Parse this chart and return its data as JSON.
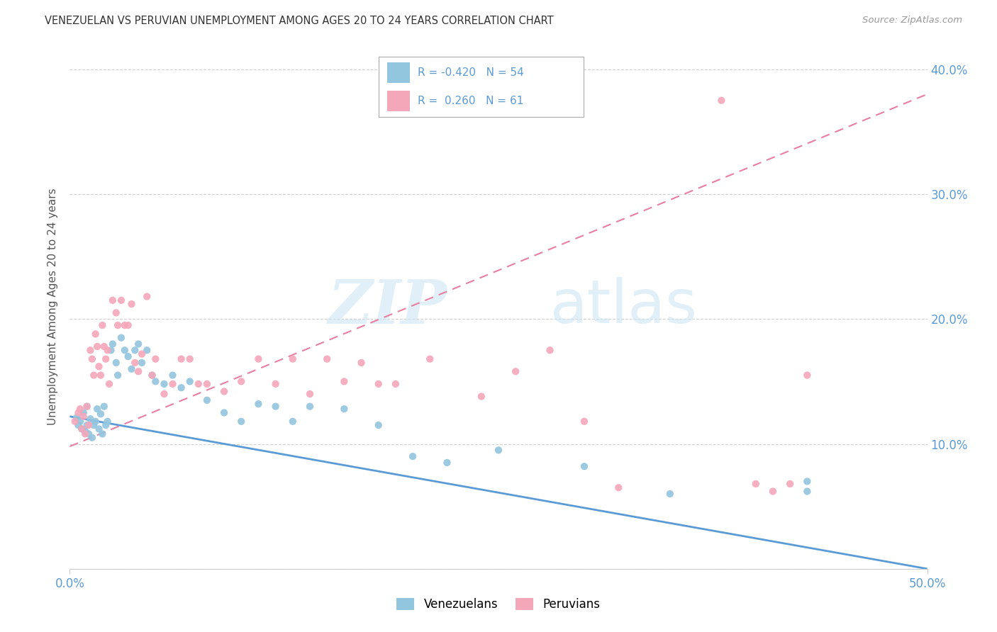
{
  "title": "VENEZUELAN VS PERUVIAN UNEMPLOYMENT AMONG AGES 20 TO 24 YEARS CORRELATION CHART",
  "source": "Source: ZipAtlas.com",
  "ylabel": "Unemployment Among Ages 20 to 24 years",
  "xlim": [
    0.0,
    0.5
  ],
  "ylim": [
    0.0,
    0.42
  ],
  "xtick_positions": [
    0.0,
    0.5
  ],
  "xtick_labels": [
    "0.0%",
    "50.0%"
  ],
  "ytick_positions": [
    0.0,
    0.1,
    0.2,
    0.3,
    0.4
  ],
  "ytick_labels_right": [
    "",
    "10.0%",
    "20.0%",
    "30.0%",
    "40.0%"
  ],
  "venezuelan_color": "#92c5de",
  "peruvian_color": "#f4a7b9",
  "venezuelan_line_color": "#5b9bd5",
  "peruvian_line_color": "#e87fa0",
  "R_venezuelan": -0.42,
  "N_venezuelan": 54,
  "R_peruvian": 0.26,
  "N_peruvian": 61,
  "ven_line_x0": 0.0,
  "ven_line_y0": 0.122,
  "ven_line_x1": 0.5,
  "ven_line_y1": 0.0,
  "per_line_x0": 0.0,
  "per_line_y0": 0.098,
  "per_line_x1": 0.5,
  "per_line_y1": 0.38,
  "venezuelan_scatter_x": [
    0.004,
    0.005,
    0.006,
    0.007,
    0.008,
    0.009,
    0.01,
    0.01,
    0.011,
    0.012,
    0.013,
    0.014,
    0.015,
    0.016,
    0.017,
    0.018,
    0.019,
    0.02,
    0.021,
    0.022,
    0.024,
    0.025,
    0.027,
    0.028,
    0.03,
    0.032,
    0.034,
    0.036,
    0.038,
    0.04,
    0.042,
    0.045,
    0.048,
    0.05,
    0.055,
    0.06,
    0.065,
    0.07,
    0.08,
    0.09,
    0.1,
    0.11,
    0.12,
    0.13,
    0.14,
    0.16,
    0.18,
    0.2,
    0.22,
    0.25,
    0.3,
    0.35,
    0.43,
    0.43
  ],
  "venezuelan_scatter_y": [
    0.121,
    0.115,
    0.118,
    0.112,
    0.125,
    0.11,
    0.115,
    0.13,
    0.108,
    0.12,
    0.105,
    0.115,
    0.118,
    0.128,
    0.112,
    0.124,
    0.108,
    0.13,
    0.115,
    0.118,
    0.175,
    0.18,
    0.165,
    0.155,
    0.185,
    0.175,
    0.17,
    0.16,
    0.175,
    0.18,
    0.165,
    0.175,
    0.155,
    0.15,
    0.148,
    0.155,
    0.145,
    0.15,
    0.135,
    0.125,
    0.118,
    0.132,
    0.13,
    0.118,
    0.13,
    0.128,
    0.115,
    0.09,
    0.085,
    0.095,
    0.082,
    0.06,
    0.07,
    0.062
  ],
  "peruvian_scatter_x": [
    0.003,
    0.005,
    0.006,
    0.007,
    0.008,
    0.009,
    0.01,
    0.011,
    0.012,
    0.013,
    0.014,
    0.015,
    0.016,
    0.017,
    0.018,
    0.019,
    0.02,
    0.021,
    0.022,
    0.023,
    0.025,
    0.027,
    0.028,
    0.03,
    0.032,
    0.034,
    0.036,
    0.038,
    0.04,
    0.042,
    0.045,
    0.048,
    0.05,
    0.055,
    0.06,
    0.065,
    0.07,
    0.075,
    0.08,
    0.09,
    0.1,
    0.11,
    0.12,
    0.13,
    0.14,
    0.15,
    0.16,
    0.17,
    0.18,
    0.19,
    0.21,
    0.24,
    0.26,
    0.28,
    0.3,
    0.32,
    0.38,
    0.4,
    0.41,
    0.42,
    0.43
  ],
  "peruvian_scatter_y": [
    0.118,
    0.125,
    0.128,
    0.112,
    0.122,
    0.108,
    0.13,
    0.115,
    0.175,
    0.168,
    0.155,
    0.188,
    0.178,
    0.162,
    0.155,
    0.195,
    0.178,
    0.168,
    0.175,
    0.148,
    0.215,
    0.205,
    0.195,
    0.215,
    0.195,
    0.195,
    0.212,
    0.165,
    0.158,
    0.172,
    0.218,
    0.155,
    0.168,
    0.14,
    0.148,
    0.168,
    0.168,
    0.148,
    0.148,
    0.142,
    0.15,
    0.168,
    0.148,
    0.168,
    0.14,
    0.168,
    0.15,
    0.165,
    0.148,
    0.148,
    0.168,
    0.138,
    0.158,
    0.175,
    0.118,
    0.065,
    0.375,
    0.068,
    0.062,
    0.068,
    0.155
  ],
  "watermark_zip": "ZIP",
  "watermark_atlas": "atlas",
  "background_color": "#ffffff",
  "grid_color": "#cccccc",
  "title_color": "#333333",
  "axis_color": "#5b9bd5",
  "legend_venezuelan_label": "Venezuelans",
  "legend_peruvian_label": "Peruvians"
}
